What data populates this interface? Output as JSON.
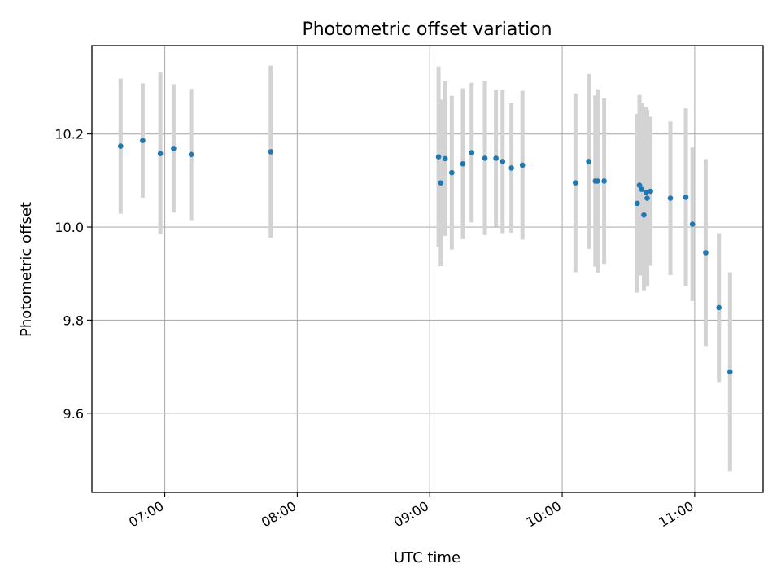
{
  "chart_data": {
    "type": "scatter",
    "title": "Photometric offset variation",
    "xlabel": "UTC time",
    "ylabel": "Photometric offset",
    "xlim": [
      "06:27",
      "11:31"
    ],
    "ylim": [
      9.43,
      10.39
    ],
    "x_ticks": [
      "07:00",
      "08:00",
      "09:00",
      "10:00",
      "11:00"
    ],
    "y_ticks": [
      "9.6",
      "9.8",
      "10.0",
      "10.2"
    ],
    "grid": true,
    "point_color": "#1f77b4",
    "errorbar_color": "#d3d3d3",
    "points": [
      {
        "x": "06:40",
        "y": 10.174,
        "err": 0.145
      },
      {
        "x": "06:50",
        "y": 10.186,
        "err": 0.123
      },
      {
        "x": "06:58",
        "y": 10.158,
        "err": 0.174
      },
      {
        "x": "07:04",
        "y": 10.169,
        "err": 0.138
      },
      {
        "x": "07:12",
        "y": 10.156,
        "err": 0.141
      },
      {
        "x": "07:48",
        "y": 10.162,
        "err": 0.185
      },
      {
        "x": "09:04",
        "y": 10.151,
        "err": 0.194
      },
      {
        "x": "09:05",
        "y": 10.095,
        "err": 0.179
      },
      {
        "x": "09:07",
        "y": 10.147,
        "err": 0.166
      },
      {
        "x": "09:10",
        "y": 10.117,
        "err": 0.165
      },
      {
        "x": "09:15",
        "y": 10.136,
        "err": 0.162
      },
      {
        "x": "09:19",
        "y": 10.16,
        "err": 0.15
      },
      {
        "x": "09:25",
        "y": 10.148,
        "err": 0.165
      },
      {
        "x": "09:30",
        "y": 10.148,
        "err": 0.147
      },
      {
        "x": "09:33",
        "y": 10.141,
        "err": 0.154
      },
      {
        "x": "09:37",
        "y": 10.127,
        "err": 0.139
      },
      {
        "x": "09:42",
        "y": 10.133,
        "err": 0.16
      },
      {
        "x": "10:06",
        "y": 10.095,
        "err": 0.192
      },
      {
        "x": "10:12",
        "y": 10.141,
        "err": 0.188
      },
      {
        "x": "10:15",
        "y": 10.099,
        "err": 0.184
      },
      {
        "x": "10:16",
        "y": 10.099,
        "err": 0.197
      },
      {
        "x": "10:19",
        "y": 10.099,
        "err": 0.178
      },
      {
        "x": "10:34",
        "y": 10.051,
        "err": 0.192
      },
      {
        "x": "10:35",
        "y": 10.09,
        "err": 0.194
      },
      {
        "x": "10:36",
        "y": 10.081,
        "err": 0.185
      },
      {
        "x": "10:37",
        "y": 10.026,
        "err": 0.162
      },
      {
        "x": "10:38",
        "y": 10.075,
        "err": 0.183
      },
      {
        "x": "10:38.5",
        "y": 10.062,
        "err": 0.19
      },
      {
        "x": "10:40",
        "y": 10.077,
        "err": 0.16
      },
      {
        "x": "10:49",
        "y": 10.062,
        "err": 0.165
      },
      {
        "x": "10:56",
        "y": 10.064,
        "err": 0.191
      },
      {
        "x": "10:59",
        "y": 10.006,
        "err": 0.165
      },
      {
        "x": "11:05",
        "y": 9.945,
        "err": 0.201
      },
      {
        "x": "11:11",
        "y": 9.827,
        "err": 0.16
      },
      {
        "x": "11:16",
        "y": 9.689,
        "err": 0.214
      }
    ]
  }
}
